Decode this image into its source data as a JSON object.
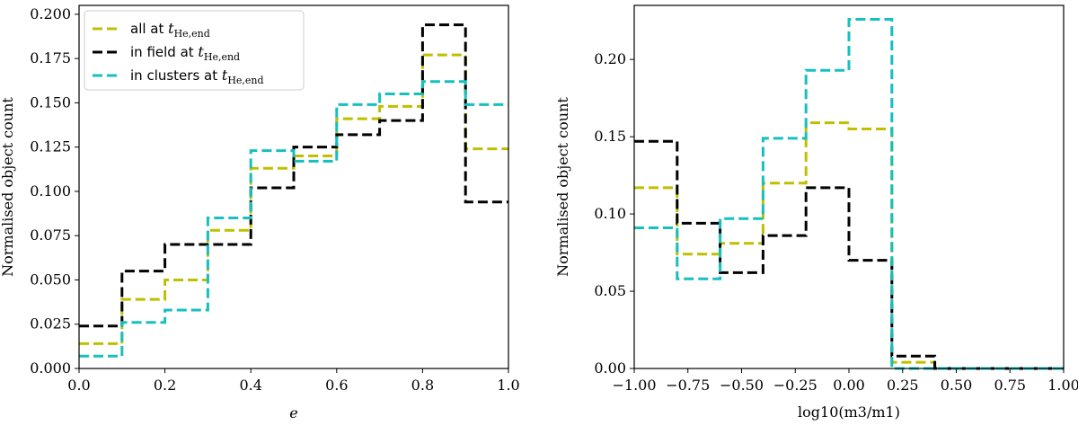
{
  "chart_data": [
    {
      "type": "line",
      "subtype": "step-histogram",
      "xlabel": "e",
      "ylabel": "Normalised object count",
      "xlim": [
        0.0,
        1.0
      ],
      "ylim": [
        0.0,
        0.205
      ],
      "x_ticks": [
        0.0,
        0.2,
        0.4,
        0.6,
        0.8,
        1.0
      ],
      "x_tick_labels": [
        "0.0",
        "0.2",
        "0.4",
        "0.6",
        "0.8",
        "1.0"
      ],
      "y_ticks": [
        0.0,
        0.025,
        0.05,
        0.075,
        0.1,
        0.125,
        0.15,
        0.175,
        0.2
      ],
      "y_tick_labels": [
        "0.000",
        "0.025",
        "0.050",
        "0.075",
        "0.100",
        "0.125",
        "0.150",
        "0.175",
        "0.200"
      ],
      "grid": false,
      "legend_position": "top-left",
      "bin_edges": [
        0.0,
        0.1,
        0.2,
        0.3,
        0.4,
        0.5,
        0.6,
        0.7,
        0.8,
        0.9,
        1.0
      ],
      "series": [
        {
          "name": "all at t_He,end",
          "legend_text": "all at ",
          "legend_math": "t",
          "legend_sub": "He,end",
          "color": "#bfbf00",
          "values": [
            0.014,
            0.039,
            0.05,
            0.078,
            0.113,
            0.12,
            0.141,
            0.148,
            0.177,
            0.124
          ]
        },
        {
          "name": "in field at t_He,end",
          "legend_text": "in field at ",
          "legend_math": "t",
          "legend_sub": "He,end",
          "color": "#000000",
          "values": [
            0.024,
            0.055,
            0.07,
            0.07,
            0.102,
            0.125,
            0.132,
            0.14,
            0.194,
            0.094
          ]
        },
        {
          "name": "in clusters at t_He,end",
          "legend_text": "in clusters at ",
          "legend_math": "t",
          "legend_sub": "He,end",
          "color": "#17bfbf",
          "values": [
            0.007,
            0.026,
            0.033,
            0.085,
            0.123,
            0.117,
            0.149,
            0.155,
            0.162,
            0.149
          ]
        }
      ]
    },
    {
      "type": "line",
      "subtype": "step-histogram",
      "xlabel": "log10(m3/m1)",
      "ylabel": "Normalised object count",
      "xlim": [
        -1.0,
        1.0
      ],
      "ylim": [
        0.0,
        0.235
      ],
      "x_ticks": [
        -1.0,
        -0.75,
        -0.5,
        -0.25,
        0.0,
        0.25,
        0.5,
        0.75,
        1.0
      ],
      "x_tick_labels": [
        "−1.00",
        "−0.75",
        "−0.50",
        "−0.25",
        "0.00",
        "0.25",
        "0.50",
        "0.75",
        "1.00"
      ],
      "y_ticks": [
        0.0,
        0.05,
        0.1,
        0.15,
        0.2
      ],
      "y_tick_labels": [
        "0.00",
        "0.05",
        "0.10",
        "0.15",
        "0.20"
      ],
      "grid": false,
      "bin_edges": [
        -1.0,
        -0.8,
        -0.6,
        -0.4,
        -0.2,
        0.0,
        0.2,
        0.4,
        0.6,
        0.8,
        1.0
      ],
      "series": [
        {
          "name": "all at t_He,end",
          "color": "#bfbf00",
          "values": [
            0.117,
            0.074,
            0.081,
            0.12,
            0.159,
            0.155,
            0.004,
            0.0,
            0.0,
            0.0
          ]
        },
        {
          "name": "in field at t_He,end",
          "color": "#000000",
          "values": [
            0.147,
            0.094,
            0.062,
            0.086,
            0.117,
            0.07,
            0.008,
            0.0,
            0.0,
            0.0
          ]
        },
        {
          "name": "in clusters at t_He,end",
          "color": "#17bfbf",
          "values": [
            0.091,
            0.058,
            0.097,
            0.149,
            0.193,
            0.226,
            0.0,
            0.0,
            0.0,
            0.0
          ]
        }
      ]
    }
  ]
}
